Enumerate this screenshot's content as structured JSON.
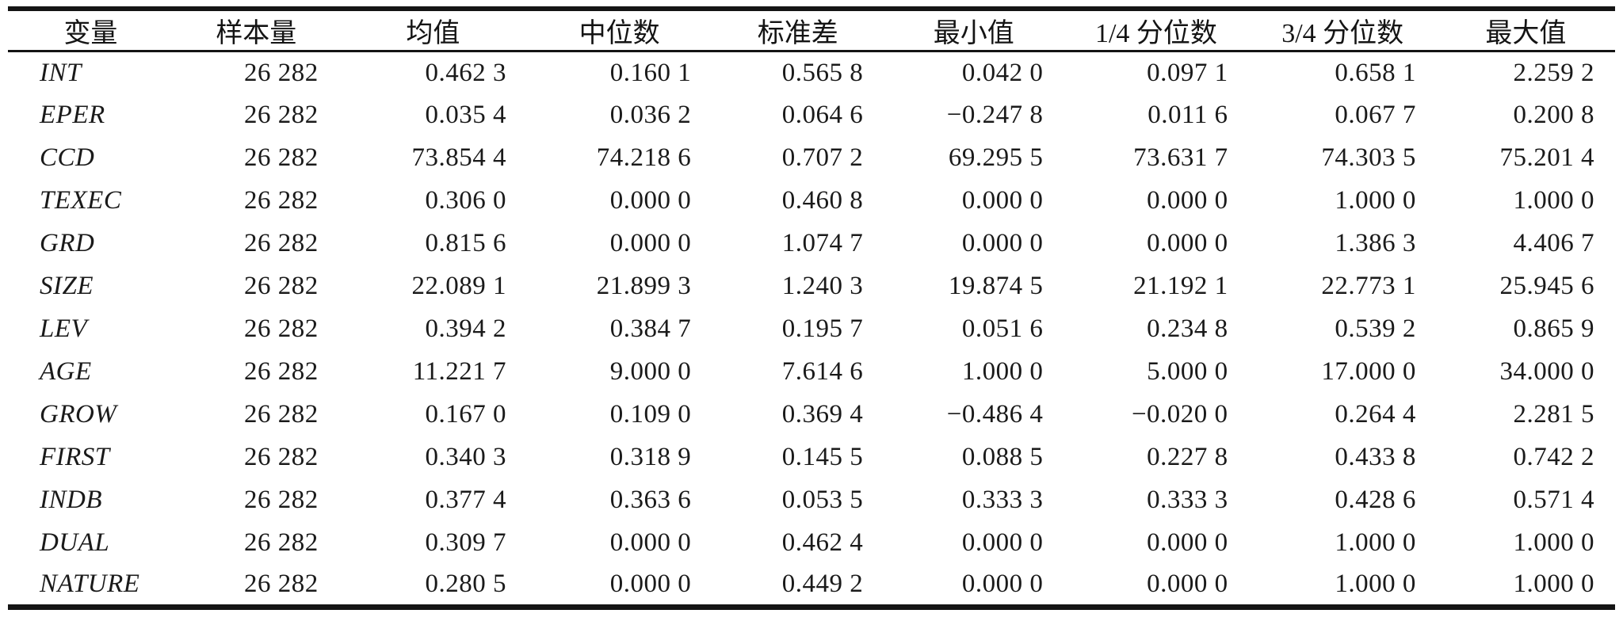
{
  "table": {
    "title_hint": "descriptive-statistics-table",
    "header": [
      "变量",
      "样本量",
      "均值",
      "中位数",
      "标准差",
      "最小值",
      "1/4 分位数",
      "3/4 分位数",
      "最大值"
    ],
    "rows": [
      [
        "INT",
        "26 282",
        "0.462 3",
        "0.160 1",
        "0.565 8",
        "0.042 0",
        "0.097 1",
        "0.658 1",
        "2.259 2"
      ],
      [
        "EPER",
        "26 282",
        "0.035 4",
        "0.036 2",
        "0.064 6",
        "−0.247 8",
        "0.011 6",
        "0.067 7",
        "0.200 8"
      ],
      [
        "CCD",
        "26 282",
        "73.854 4",
        "74.218 6",
        "0.707 2",
        "69.295 5",
        "73.631 7",
        "74.303 5",
        "75.201 4"
      ],
      [
        "TEXEC",
        "26 282",
        "0.306 0",
        "0.000 0",
        "0.460 8",
        "0.000 0",
        "0.000 0",
        "1.000 0",
        "1.000 0"
      ],
      [
        "GRD",
        "26 282",
        "0.815 6",
        "0.000 0",
        "1.074 7",
        "0.000 0",
        "0.000 0",
        "1.386 3",
        "4.406 7"
      ],
      [
        "SIZE",
        "26 282",
        "22.089 1",
        "21.899 3",
        "1.240 3",
        "19.874 5",
        "21.192 1",
        "22.773 1",
        "25.945 6"
      ],
      [
        "LEV",
        "26 282",
        "0.394 2",
        "0.384 7",
        "0.195 7",
        "0.051 6",
        "0.234 8",
        "0.539 2",
        "0.865 9"
      ],
      [
        "AGE",
        "26 282",
        "11.221 7",
        "9.000 0",
        "7.614 6",
        "1.000 0",
        "5.000 0",
        "17.000 0",
        "34.000 0"
      ],
      [
        "GROW",
        "26 282",
        "0.167 0",
        "0.109 0",
        "0.369 4",
        "−0.486 4",
        "−0.020 0",
        "0.264 4",
        "2.281 5"
      ],
      [
        "FIRST",
        "26 282",
        "0.340 3",
        "0.318 9",
        "0.145 5",
        "0.088 5",
        "0.227 8",
        "0.433 8",
        "0.742 2"
      ],
      [
        "INDB",
        "26 282",
        "0.377 4",
        "0.363 6",
        "0.053 5",
        "0.333 3",
        "0.333 3",
        "0.428 6",
        "0.571 4"
      ],
      [
        "DUAL",
        "26 282",
        "0.309 7",
        "0.000 0",
        "0.462 4",
        "0.000 0",
        "0.000 0",
        "1.000 0",
        "1.000 0"
      ],
      [
        "NATURE",
        "26 282",
        "0.280 5",
        "0.000 0",
        "0.449 2",
        "0.000 0",
        "0.000 0",
        "1.000 0",
        "1.000 0"
      ]
    ],
    "colors": {
      "text": "#1a1a1a",
      "rule": "#141414",
      "background": "#ffffff"
    }
  }
}
